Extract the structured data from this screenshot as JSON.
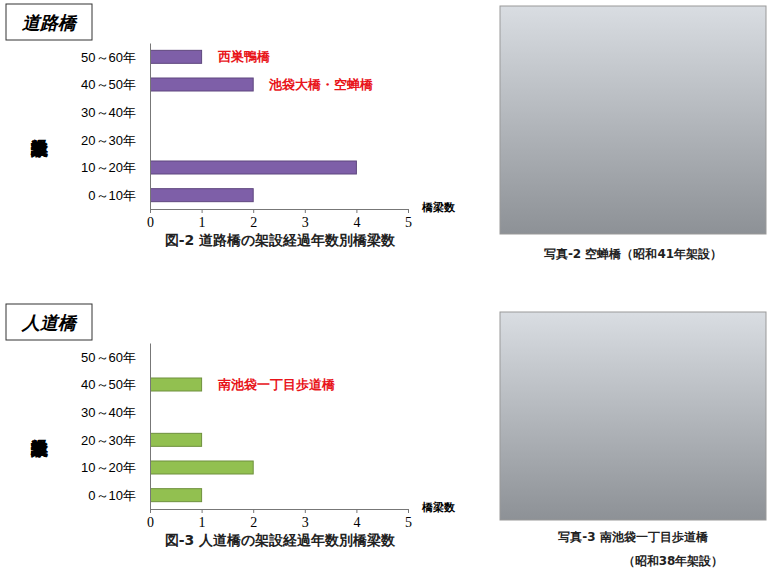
{
  "chart_data": [
    {
      "type": "bar",
      "orientation": "horizontal",
      "label": "道路橋",
      "title": "図-2 道路橋の架設経過年数別橋梁数",
      "ylabel": "架設経過年数",
      "xlabel": "橋梁数",
      "categories": [
        "50～60年",
        "40～50年",
        "30～40年",
        "20～30年",
        "10～20年",
        "0～10年"
      ],
      "values": [
        1,
        2,
        0,
        0,
        4,
        2
      ],
      "color": "#7e5fa8",
      "grid": false,
      "xlim": [
        0,
        5
      ],
      "xticks": [
        0,
        1,
        2,
        3,
        4,
        5
      ],
      "annotations": [
        {
          "text": "西巣鴨橋",
          "category": "50～60年"
        },
        {
          "text": "池袋大橋・空蝉橋",
          "category": "40～50年"
        }
      ],
      "photo_caption": [
        "写真-2 空蝉橋（昭和41年架設）"
      ]
    },
    {
      "type": "bar",
      "orientation": "horizontal",
      "label": "人道橋",
      "title": "図-3 人道橋の架設経過年数別橋梁数",
      "ylabel": "架設経過年数",
      "xlabel": "橋梁数",
      "categories": [
        "50～60年",
        "40～50年",
        "30～40年",
        "20～30年",
        "10～20年",
        "0～10年"
      ],
      "values": [
        0,
        1,
        0,
        1,
        2,
        1
      ],
      "color": "#92c050",
      "grid": false,
      "xlim": [
        0,
        5
      ],
      "xticks": [
        0,
        1,
        2,
        3,
        4,
        5
      ],
      "annotations": [
        {
          "text": "南池袋一丁目歩道橋",
          "category": "40～50年"
        }
      ],
      "photo_caption": [
        "写真-3 南池袋一丁目歩道橋",
        "（昭和38年架設）"
      ]
    }
  ]
}
